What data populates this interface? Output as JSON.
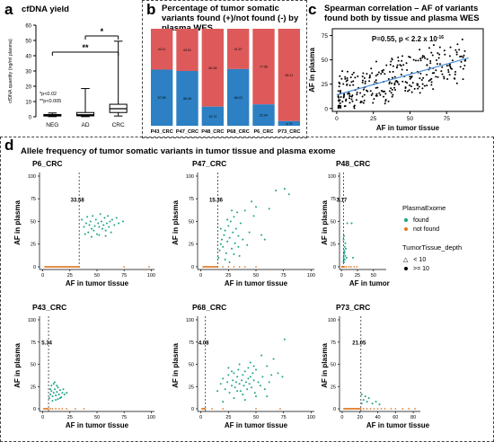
{
  "panel_a": {
    "label": "a",
    "title": "cfDNA yield"
  },
  "panel_b": {
    "label": "b",
    "title": "Percentage of tumor somatic variants found (+)/not found (-) by plasma WES"
  },
  "panel_c": {
    "label": "c",
    "title": "Spearman correlation – AF of variants found both by tissue and plasma WES"
  },
  "panel_d": {
    "label": "d",
    "title": "Allele frequency of tumor somatic variants in tumor tissue and plasma exome"
  },
  "legend": {
    "title1": "PlasmaExome",
    "found": "found",
    "not_found": "not found",
    "title2": "TumorTissue_depth",
    "lt": "< 10",
    "ge": ">= 10"
  },
  "colors": {
    "found": "#1aa385",
    "not_found": "#e07a25",
    "blue": "#2c80c3",
    "red": "#de5a5a",
    "regression": "#4b8fd6"
  },
  "chart_data": [
    {
      "type": "box",
      "id": "a",
      "title": "cfDNA yield",
      "ylabel": "cfDNA quantity (ng/ml plasma)",
      "ylim": [
        0,
        60
      ],
      "yticks": [
        0,
        10,
        20,
        30,
        40,
        50,
        60
      ],
      "categories": [
        "NEG",
        "AD",
        "CRC"
      ],
      "boxes": [
        {
          "min": 0.1,
          "q1": 0.5,
          "median": 1.0,
          "q3": 1.5,
          "max": 2.5
        },
        {
          "min": 0.1,
          "q1": 0.6,
          "median": 1.3,
          "q3": 2.8,
          "max": 18.5
        },
        {
          "min": 0.5,
          "q1": 2.8,
          "median": 5.3,
          "q3": 8.2,
          "max": 49.5
        }
      ],
      "significance": [
        {
          "from": "NEG",
          "to": "CRC",
          "label": "**"
        },
        {
          "from": "AD",
          "to": "CRC",
          "label": "*"
        }
      ],
      "annotations": [
        "*p<0.02",
        "**p<0.005"
      ]
    },
    {
      "type": "bar",
      "id": "b",
      "stacked": true,
      "categories": [
        "P43_CRC",
        "P47_CRC",
        "P48_CRC",
        "P68_CRC",
        "P6_CRC",
        "P73_CRC"
      ],
      "series": [
        {
          "values": [
            57.89,
            56.49,
            19.72,
            58.43,
            22.04,
            4.79
          ]
        },
        {
          "values": [
            42.11,
            43.51,
            80.28,
            41.57,
            77.96,
            95.21
          ]
        }
      ]
    },
    {
      "type": "scatter",
      "id": "c",
      "xlabel": "AF in tumor tissue",
      "ylabel": "AF in plasma",
      "xlim": [
        -3,
        100
      ],
      "ylim": [
        -3,
        82
      ],
      "xticks": [
        0,
        25,
        50,
        75
      ],
      "yticks": [
        0,
        25,
        50,
        75
      ],
      "annotation_text": "P=0.55, p < 2.2 x 10",
      "annotation_exp": "-16",
      "regression": {
        "x0": 0,
        "y0": 14,
        "x1": 90,
        "y1": 52
      }
    },
    {
      "type": "scatter",
      "id": "d-P6_CRC",
      "title": "P6_CRC",
      "xlabel": "AF in tumor tissue",
      "ylabel": "AF in plasma",
      "xlim": [
        -3,
        103
      ],
      "ylim": [
        -3,
        100
      ],
      "xticks": [
        0,
        25,
        50,
        75,
        100
      ],
      "yticks": [
        0,
        25,
        50,
        75,
        100
      ],
      "threshold": 33.58,
      "threshold_label": "33.58",
      "found": [
        [
          36,
          52
        ],
        [
          38,
          44
        ],
        [
          40,
          48
        ],
        [
          41,
          55
        ],
        [
          42,
          38
        ],
        [
          43,
          46
        ],
        [
          44,
          50
        ],
        [
          45,
          42
        ],
        [
          46,
          56
        ],
        [
          47,
          40
        ],
        [
          48,
          45
        ],
        [
          49,
          52
        ],
        [
          50,
          36
        ],
        [
          51,
          48
        ],
        [
          52,
          44
        ],
        [
          53,
          58
        ],
        [
          54,
          50
        ],
        [
          55,
          42
        ],
        [
          56,
          46
        ],
        [
          57,
          54
        ],
        [
          58,
          40
        ],
        [
          59,
          48
        ],
        [
          60,
          56
        ],
        [
          61,
          44
        ],
        [
          62,
          50
        ],
        [
          63,
          38
        ],
        [
          64,
          52
        ],
        [
          66,
          46
        ],
        [
          68,
          54
        ],
        [
          70,
          48
        ],
        [
          39,
          36
        ],
        [
          45,
          33
        ],
        [
          52,
          35
        ],
        [
          58,
          34
        ],
        [
          74,
          50
        ]
      ],
      "not_found_range": [
        2,
        33
      ],
      "not_found_extra": [
        [
          75,
          0
        ],
        [
          98,
          0
        ]
      ]
    },
    {
      "type": "scatter",
      "id": "d-P47_CRC",
      "title": "P47_CRC",
      "xlabel": "AF in tumor tissue",
      "ylabel": "AF in plasma",
      "xlim": [
        -3,
        103
      ],
      "ylim": [
        -3,
        100
      ],
      "xticks": [
        0,
        25,
        50,
        75,
        100
      ],
      "yticks": [
        0,
        25,
        50,
        75,
        100
      ],
      "threshold": 15.36,
      "threshold_label": "15.36",
      "found": [
        [
          16,
          10
        ],
        [
          17,
          18
        ],
        [
          18,
          25
        ],
        [
          19,
          30
        ],
        [
          20,
          22
        ],
        [
          21,
          35
        ],
        [
          22,
          40
        ],
        [
          23,
          15
        ],
        [
          24,
          28
        ],
        [
          25,
          45
        ],
        [
          26,
          32
        ],
        [
          27,
          50
        ],
        [
          28,
          20
        ],
        [
          29,
          38
        ],
        [
          30,
          55
        ],
        [
          31,
          26
        ],
        [
          32,
          42
        ],
        [
          33,
          60
        ],
        [
          34,
          34
        ],
        [
          35,
          12
        ],
        [
          36,
          48
        ],
        [
          38,
          30
        ],
        [
          40,
          62
        ],
        [
          42,
          24
        ],
        [
          44,
          38
        ],
        [
          46,
          72
        ],
        [
          48,
          56
        ],
        [
          50,
          66
        ],
        [
          55,
          35
        ],
        [
          58,
          30
        ],
        [
          62,
          64
        ],
        [
          68,
          84
        ],
        [
          76,
          86
        ],
        [
          80,
          80
        ],
        [
          22,
          8
        ],
        [
          26,
          5
        ],
        [
          30,
          14
        ],
        [
          34,
          22
        ],
        [
          18,
          42
        ],
        [
          24,
          52
        ],
        [
          28,
          62
        ]
      ],
      "not_found_range": [
        2,
        15
      ],
      "not_found_extra": [
        [
          20,
          0
        ],
        [
          25,
          0
        ],
        [
          30,
          0
        ],
        [
          35,
          0
        ],
        [
          40,
          0
        ],
        [
          50,
          0
        ]
      ]
    },
    {
      "type": "scatter",
      "id": "d-P48_CRC",
      "title": "P48_CRC",
      "xlabel": "AF in tumor tissue",
      "ylabel": "AF in plasma",
      "xlim": [
        -3,
        70
      ],
      "ylim": [
        -3,
        100
      ],
      "xticks": [
        0,
        25,
        50
      ],
      "yticks": [
        0,
        25,
        50,
        75,
        100
      ],
      "threshold": 3.17,
      "threshold_label": "3.17",
      "found": [
        [
          3,
          6
        ],
        [
          3.5,
          10
        ],
        [
          4,
          14
        ],
        [
          4.5,
          18
        ],
        [
          5,
          22
        ],
        [
          5,
          8
        ],
        [
          6,
          26
        ],
        [
          6,
          12
        ],
        [
          3.5,
          30
        ],
        [
          4,
          34
        ],
        [
          5,
          16
        ],
        [
          7,
          20
        ],
        [
          8,
          10
        ],
        [
          4,
          5
        ],
        [
          9,
          48
        ],
        [
          16,
          48
        ],
        [
          18,
          10
        ]
      ],
      "not_found_range": [
        0.5,
        3
      ],
      "not_found_extra": [
        [
          5,
          0
        ],
        [
          8,
          0
        ],
        [
          12,
          0
        ],
        [
          15,
          0
        ],
        [
          20,
          0
        ],
        [
          24,
          0
        ]
      ]
    },
    {
      "type": "scatter",
      "id": "d-P43_CRC",
      "title": "P43_CRC",
      "xlabel": "AF in tumor tissue",
      "ylabel": "AF in plasma",
      "xlim": [
        -3,
        103
      ],
      "ylim": [
        -3,
        100
      ],
      "xticks": [
        0,
        25,
        50,
        75,
        100
      ],
      "yticks": [
        0,
        25,
        50,
        75,
        100
      ],
      "threshold": 5.34,
      "threshold_label": "5.34",
      "found": [
        [
          6,
          12
        ],
        [
          7,
          16
        ],
        [
          8,
          20
        ],
        [
          9,
          14
        ],
        [
          10,
          18
        ],
        [
          11,
          22
        ],
        [
          12,
          15
        ],
        [
          13,
          19
        ],
        [
          14,
          24
        ],
        [
          15,
          16
        ],
        [
          16,
          21
        ],
        [
          17,
          13
        ],
        [
          18,
          18
        ],
        [
          19,
          22
        ],
        [
          20,
          16
        ],
        [
          8,
          26
        ],
        [
          10,
          28
        ],
        [
          12,
          10
        ],
        [
          14,
          11
        ],
        [
          16,
          12
        ],
        [
          22,
          18
        ],
        [
          9,
          9
        ],
        [
          11,
          30
        ],
        [
          13,
          26
        ],
        [
          7,
          22
        ]
      ],
      "not_found_range": [
        1,
        5
      ],
      "not_found_extra": [
        [
          7,
          0
        ],
        [
          9,
          0
        ],
        [
          12,
          0
        ],
        [
          15,
          0
        ],
        [
          18,
          0
        ],
        [
          22,
          0
        ],
        [
          30,
          0
        ],
        [
          38,
          0
        ]
      ]
    },
    {
      "type": "scatter",
      "id": "d-P68_CRC",
      "title": "P68_CRC",
      "xlabel": "AF in tumor tissue",
      "ylabel": "AF in plasma",
      "xlim": [
        -3,
        103
      ],
      "ylim": [
        -3,
        100
      ],
      "xticks": [
        0,
        25,
        50,
        75,
        100
      ],
      "yticks": [
        0,
        25,
        50,
        75,
        100
      ],
      "threshold": 4.08,
      "threshold_label": "4.08",
      "found": [
        [
          15,
          20
        ],
        [
          18,
          28
        ],
        [
          20,
          34
        ],
        [
          22,
          22
        ],
        [
          24,
          30
        ],
        [
          25,
          38
        ],
        [
          26,
          18
        ],
        [
          28,
          26
        ],
        [
          29,
          32
        ],
        [
          30,
          40
        ],
        [
          31,
          24
        ],
        [
          32,
          30
        ],
        [
          33,
          36
        ],
        [
          34,
          44
        ],
        [
          35,
          28
        ],
        [
          36,
          20
        ],
        [
          37,
          32
        ],
        [
          38,
          38
        ],
        [
          39,
          26
        ],
        [
          40,
          42
        ],
        [
          41,
          30
        ],
        [
          42,
          22
        ],
        [
          43,
          34
        ],
        [
          44,
          28
        ],
        [
          45,
          36
        ],
        [
          46,
          24
        ],
        [
          47,
          40
        ],
        [
          48,
          32
        ],
        [
          49,
          18
        ],
        [
          50,
          44
        ],
        [
          52,
          30
        ],
        [
          54,
          26
        ],
        [
          56,
          36
        ],
        [
          58,
          22
        ],
        [
          60,
          48
        ],
        [
          62,
          30
        ],
        [
          64,
          38
        ],
        [
          66,
          56
        ],
        [
          70,
          40
        ],
        [
          74,
          36
        ],
        [
          76,
          78
        ],
        [
          30,
          12
        ],
        [
          40,
          10
        ],
        [
          50,
          14
        ],
        [
          25,
          46
        ],
        [
          35,
          50
        ],
        [
          45,
          52
        ],
        [
          20,
          8
        ],
        [
          60,
          14
        ],
        [
          55,
          60
        ],
        [
          38,
          16
        ],
        [
          28,
          42
        ],
        [
          48,
          48
        ],
        [
          33,
          20
        ],
        [
          43,
          46
        ]
      ],
      "not_found_range": [
        1,
        4
      ],
      "not_found_extra": [
        [
          10,
          0
        ],
        [
          20,
          0
        ],
        [
          50,
          0
        ],
        [
          72,
          0
        ]
      ]
    },
    {
      "type": "scatter",
      "id": "d-P73_CRC",
      "title": "P73_CRC",
      "xlabel": "AF in tumor tissue",
      "ylabel": "AF in plasma",
      "xlim": [
        -3,
        88
      ],
      "ylim": [
        -3,
        100
      ],
      "xticks": [
        0,
        20,
        40,
        60,
        80
      ],
      "yticks": [
        0,
        25,
        50,
        75,
        100
      ],
      "threshold": 21.05,
      "threshold_label": "21.05",
      "found": [
        [
          22,
          6
        ],
        [
          24,
          10
        ],
        [
          26,
          14
        ],
        [
          28,
          8
        ],
        [
          30,
          12
        ],
        [
          22,
          16
        ],
        [
          34,
          6
        ],
        [
          38,
          8
        ],
        [
          42,
          5
        ]
      ],
      "not_found_range": [
        2,
        21
      ],
      "not_found_extra": [
        [
          24,
          0
        ],
        [
          28,
          0
        ],
        [
          32,
          0
        ],
        [
          36,
          0
        ],
        [
          40,
          0
        ],
        [
          44,
          0
        ],
        [
          48,
          0
        ],
        [
          55,
          0
        ],
        [
          60,
          0
        ],
        [
          68,
          0
        ],
        [
          75,
          0
        ],
        [
          82,
          0
        ]
      ]
    }
  ]
}
